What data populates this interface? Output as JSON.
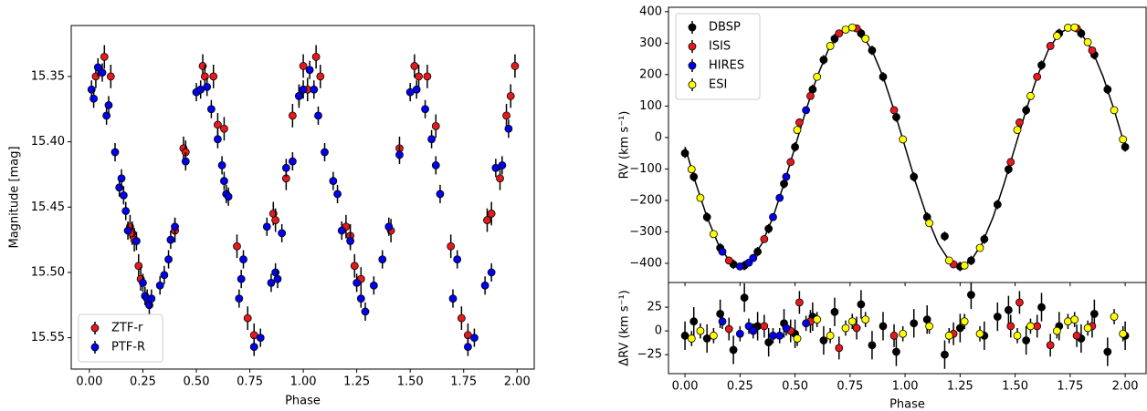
{
  "chart_data": [
    {
      "type": "scatter",
      "xlabel": "Phase",
      "ylabel": "Magnitude [mag]",
      "xlim": [
        -0.085,
        2.08
      ],
      "xticks": [
        {
          "value": 0,
          "label": "0.00"
        },
        0.25,
        {
          "value": 0.5,
          "label": "0.50"
        },
        0.75,
        {
          "value": 1,
          "label": "1.00"
        },
        1.25,
        {
          "value": 1.5,
          "label": "1.50"
        },
        1.75,
        {
          "value": 2,
          "label": "2.00"
        }
      ],
      "ylim": [
        15.574,
        15.311
      ],
      "yticks": [
        15.35,
        {
          "value": 15.4,
          "label": "15.40"
        },
        15.45,
        {
          "value": 15.5,
          "label": "15.50"
        },
        15.55
      ],
      "legend": "lower left",
      "series": [
        {
          "name": "ZTF-r",
          "color": "#e41a1c",
          "error": 0.009,
          "x": [
            0.03,
            0.07,
            0.1,
            0.19,
            0.2,
            0.21,
            0.23,
            0.24,
            0.4,
            0.44,
            0.45,
            0.53,
            0.54,
            0.58,
            0.6,
            0.63,
            0.69,
            0.74,
            0.77,
            0.86,
            0.87,
            0.92,
            0.95,
            0.98,
            1.0,
            1.02,
            1.06,
            1.08,
            1.2,
            1.22,
            1.24,
            1.27,
            1.41,
            1.45,
            1.52,
            1.54,
            1.58,
            1.62,
            1.69,
            1.74,
            1.77,
            1.86,
            1.88,
            1.92,
            1.95,
            1.97,
            1.99
          ],
          "values": [
            15.35,
            15.335,
            15.35,
            15.465,
            15.47,
            15.475,
            15.495,
            15.505,
            15.468,
            15.405,
            15.408,
            15.342,
            15.35,
            15.35,
            15.387,
            15.39,
            15.48,
            15.535,
            15.548,
            15.455,
            15.46,
            15.428,
            15.38,
            15.365,
            15.342,
            15.36,
            15.335,
            15.35,
            15.465,
            15.472,
            15.495,
            15.505,
            15.468,
            15.405,
            15.342,
            15.35,
            15.35,
            15.388,
            15.48,
            15.535,
            15.548,
            15.46,
            15.455,
            15.428,
            15.38,
            15.365,
            15.342
          ]
        },
        {
          "name": "PTF-R",
          "color": "#0000ee",
          "error": 0.007,
          "x": [
            0.01,
            0.02,
            0.04,
            0.06,
            0.08,
            0.09,
            0.12,
            0.14,
            0.15,
            0.16,
            0.17,
            0.18,
            0.22,
            0.25,
            0.26,
            0.27,
            0.28,
            0.29,
            0.33,
            0.35,
            0.37,
            0.38,
            0.4,
            0.45,
            0.5,
            0.52,
            0.55,
            0.57,
            0.6,
            0.62,
            0.63,
            0.64,
            0.65,
            0.7,
            0.71,
            0.72,
            0.77,
            0.8,
            0.83,
            0.85,
            0.87,
            0.88,
            0.9,
            0.92,
            0.95,
            0.98,
            1.0,
            1.03,
            1.05,
            1.07,
            1.1,
            1.14,
            1.16,
            1.18,
            1.22,
            1.25,
            1.27,
            1.29,
            1.33,
            1.37,
            1.4,
            1.45,
            1.5,
            1.53,
            1.57,
            1.6,
            1.62,
            1.64,
            1.7,
            1.72,
            1.77,
            1.8,
            1.85,
            1.88,
            1.9,
            1.93,
            1.96
          ],
          "values": [
            15.36,
            15.367,
            15.343,
            15.347,
            15.38,
            15.372,
            15.408,
            15.435,
            15.428,
            15.441,
            15.453,
            15.468,
            15.476,
            15.508,
            15.518,
            15.52,
            15.525,
            15.52,
            15.51,
            15.502,
            15.49,
            15.475,
            15.465,
            15.415,
            15.362,
            15.36,
            15.358,
            15.375,
            15.398,
            15.418,
            15.43,
            15.44,
            15.442,
            15.52,
            15.505,
            15.49,
            15.557,
            15.55,
            15.465,
            15.508,
            15.5,
            15.505,
            15.47,
            15.42,
            15.415,
            15.365,
            15.36,
            15.345,
            15.36,
            15.38,
            15.408,
            15.43,
            15.44,
            15.468,
            15.476,
            15.508,
            15.52,
            15.53,
            15.51,
            15.49,
            15.465,
            15.41,
            15.362,
            15.36,
            15.375,
            15.398,
            15.418,
            15.44,
            15.52,
            15.49,
            15.557,
            15.55,
            15.51,
            15.5,
            15.42,
            15.418,
            15.39
          ]
        }
      ]
    },
    {
      "type": "scatter",
      "xlabel": "Phase",
      "ylabel": "RV (km s⁻¹)",
      "residual_label": "ΔRV (km s⁻¹)",
      "xlim": [
        -0.075,
        2.095
      ],
      "xticks": [
        {
          "value": 0,
          "label": "0.00"
        },
        0.25,
        {
          "value": 0.5,
          "label": "0.50"
        },
        0.75,
        {
          "value": 1,
          "label": "1.00"
        },
        1.25,
        {
          "value": 1.5,
          "label": "1.50"
        },
        1.75,
        {
          "value": 2,
          "label": "2.00"
        }
      ],
      "ylim": [
        -461,
        414
      ],
      "yticks": [
        {
          "value": -400,
          "label": "−400"
        },
        {
          "value": -300,
          "label": "−300"
        },
        {
          "value": -200,
          "label": "−200"
        },
        {
          "value": -100,
          "label": "−100"
        },
        0,
        100,
        200,
        300,
        400
      ],
      "residual_ylim": [
        -45,
        51
      ],
      "residual_yticks": [
        {
          "value": -25,
          "label": "−25"
        },
        0,
        25
      ],
      "legend": "upper left",
      "model": {
        "color": "#000000",
        "x": [
          0,
          0.05,
          0.1,
          0.15,
          0.2,
          0.25,
          0.3,
          0.35,
          0.4,
          0.45,
          0.5,
          0.55,
          0.6,
          0.65,
          0.7,
          0.75,
          0.8,
          0.85,
          0.9,
          0.95,
          1,
          1.05,
          1.1,
          1.15,
          1.2,
          1.25,
          1.3,
          1.35,
          1.4,
          1.45,
          1.5,
          1.55,
          1.6,
          1.65,
          1.7,
          1.75,
          1.8,
          1.85,
          1.9,
          1.95,
          2
        ],
        "values": [
          -30,
          -147,
          -253,
          -337,
          -391,
          -410,
          -391,
          -337,
          -253,
          -147,
          -30,
          87,
          193,
          277,
          331,
          350,
          331,
          277,
          193,
          87,
          -30,
          -147,
          -253,
          -337,
          -391,
          -410,
          -391,
          -337,
          -253,
          -147,
          -30,
          87,
          193,
          277,
          331,
          350,
          331,
          277,
          193,
          87,
          -30
        ]
      },
      "series": [
        {
          "name": "DBSP",
          "color": "#000000",
          "error": 15,
          "x": [
            0.0,
            0.04,
            0.1,
            0.16,
            0.22,
            0.27,
            0.33,
            0.38,
            0.45,
            0.5,
            0.58,
            0.63,
            0.68,
            0.8,
            0.85,
            0.9,
            0.96,
            1.04,
            1.1,
            1.18,
            1.25,
            1.3,
            1.36,
            1.42,
            1.47,
            1.55,
            1.62,
            1.7,
            1.8,
            1.86,
            1.92,
            2.0
          ],
          "values": [
            -50,
            -125,
            -253,
            -351,
            -403,
            -407,
            -363,
            -290,
            -147,
            -30,
            153,
            247,
            314,
            331,
            277,
            193,
            65,
            -125,
            -253,
            -314,
            -410,
            -391,
            -323,
            -213,
            -101,
            87,
            230,
            331,
            331,
            263,
            153,
            -30
          ],
          "residuals": [
            -5,
            10,
            -8,
            18,
            -20,
            35,
            5,
            -12,
            8,
            -3,
            15,
            -10,
            20,
            28,
            -15,
            5,
            -22,
            8,
            12,
            -25,
            3,
            38,
            -5,
            15,
            22,
            -10,
            25,
            5,
            -8,
            18,
            -22,
            -5
          ]
        },
        {
          "name": "ISIS",
          "color": "#e41a1c",
          "error": 12,
          "x": [
            0.2,
            0.36,
            0.48,
            0.52,
            0.57,
            0.7,
            0.78,
            0.95,
            1.22,
            1.48,
            1.52,
            1.6,
            1.66,
            1.78,
            1.85
          ],
          "values": [
            -391,
            -323,
            -78,
            48,
            132,
            331,
            347,
            87,
            -403,
            -78,
            48,
            193,
            291,
            347,
            277
          ],
          "residuals": [
            2,
            5,
            0,
            30,
            10,
            -18,
            3,
            -5,
            -3,
            5,
            30,
            5,
            -15,
            -5,
            5
          ]
        },
        {
          "name": "HIRES",
          "color": "#0000ee",
          "error": 8,
          "x": [
            0.17,
            0.25,
            0.29,
            0.31,
            0.4,
            0.43,
            0.46,
            0.55
          ],
          "values": [
            -363,
            -410,
            -398,
            -383,
            -253,
            -192,
            -125,
            87
          ],
          "residuals": [
            10,
            -3,
            5,
            0,
            -5,
            -5,
            3,
            8
          ]
        },
        {
          "name": "ESI",
          "color": "#ffff00",
          "error": 8,
          "x": [
            0.03,
            0.07,
            0.13,
            0.51,
            0.6,
            0.66,
            0.73,
            0.76,
            0.82,
            0.99,
            1.11,
            1.2,
            1.27,
            1.34,
            1.51,
            1.57,
            1.69,
            1.74,
            1.77,
            1.83,
            1.95,
            1.99
          ],
          "values": [
            -101,
            -192,
            -307,
            24,
            193,
            291,
            343,
            350,
            314,
            -6,
            -272,
            -391,
            -407,
            -351,
            24,
            132,
            323,
            349,
            350,
            303,
            87,
            -6
          ],
          "residuals": [
            -8,
            0,
            -5,
            -8,
            12,
            -5,
            3,
            10,
            12,
            -3,
            5,
            -5,
            10,
            -3,
            -5,
            5,
            0,
            10,
            12,
            3,
            15,
            -3
          ]
        }
      ]
    }
  ]
}
